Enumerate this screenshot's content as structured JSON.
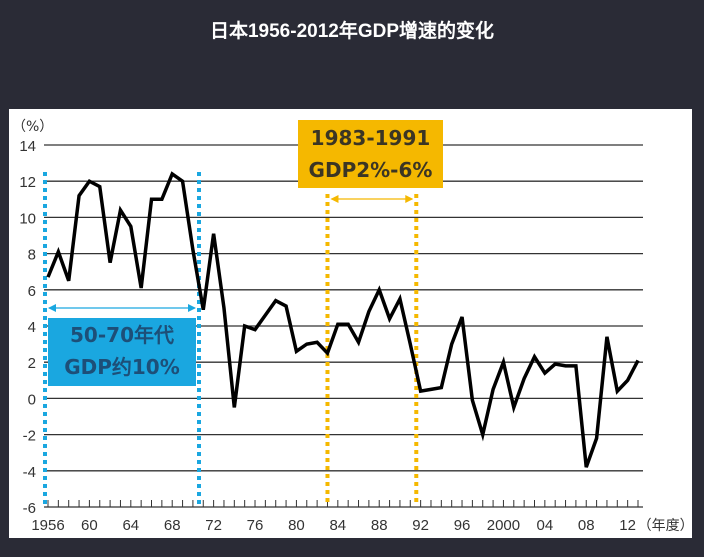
{
  "title": "日本1956-2012年GDP增速的变化",
  "chart_data": {
    "type": "line",
    "title": "日本1956-2012年GDP增速的变化",
    "ylabel": "（%）",
    "xlabel": "（年度）",
    "ylim": [
      -6,
      14
    ],
    "yticks": [
      14,
      12,
      10,
      8,
      6,
      4,
      2,
      0,
      -2,
      -4,
      -6
    ],
    "xlim": [
      1956,
      2013
    ],
    "xticks": [
      {
        "year": 1956,
        "label": "1956"
      },
      {
        "year": 1960,
        "label": "60"
      },
      {
        "year": 1964,
        "label": "64"
      },
      {
        "year": 1968,
        "label": "68"
      },
      {
        "year": 1972,
        "label": "72"
      },
      {
        "year": 1976,
        "label": "76"
      },
      {
        "year": 1980,
        "label": "80"
      },
      {
        "year": 1984,
        "label": "84"
      },
      {
        "year": 1988,
        "label": "88"
      },
      {
        "year": 1992,
        "label": "92"
      },
      {
        "year": 1996,
        "label": "96"
      },
      {
        "year": 2000,
        "label": "2000"
      },
      {
        "year": 2004,
        "label": "04"
      },
      {
        "year": 2008,
        "label": "08"
      },
      {
        "year": 2012,
        "label": "12"
      }
    ],
    "grid": true,
    "series": [
      {
        "color": "#000000",
        "x": [
          1956,
          1957,
          1958,
          1959,
          1960,
          1961,
          1962,
          1963,
          1964,
          1965,
          1966,
          1967,
          1968,
          1969,
          1970,
          1971,
          1972,
          1973,
          1974,
          1975,
          1976,
          1977,
          1978,
          1979,
          1980,
          1981,
          1982,
          1983,
          1984,
          1985,
          1986,
          1987,
          1988,
          1989,
          1990,
          1991,
          1992,
          1993,
          1994,
          1995,
          1996,
          1997,
          1998,
          1999,
          2000,
          2001,
          2002,
          2003,
          2004,
          2005,
          2006,
          2007,
          2008,
          2009,
          2010,
          2011,
          2012,
          2013
        ],
        "values": [
          6.7,
          8.1,
          6.5,
          11.2,
          12.0,
          11.7,
          7.5,
          10.4,
          9.5,
          6.1,
          11.0,
          11.0,
          12.4,
          12.0,
          8.2,
          4.9,
          9.1,
          5.0,
          -0.5,
          4.0,
          3.8,
          4.6,
          5.4,
          5.1,
          2.6,
          3.0,
          3.1,
          2.5,
          4.1,
          4.1,
          3.1,
          4.8,
          6.0,
          4.4,
          5.5,
          3.0,
          0.4,
          0.5,
          0.6,
          3.0,
          4.5,
          -0.1,
          -2.0,
          0.5,
          2.0,
          -0.5,
          1.1,
          2.3,
          1.4,
          1.9,
          1.8,
          1.8,
          -3.8,
          -2.2,
          3.4,
          0.4,
          1.0,
          2.1
        ]
      }
    ],
    "annotations": [
      {
        "label_line1": "50-70年代",
        "label_line2": "GDP约10%",
        "from": 1956,
        "to": 1971,
        "color": "#1aa7e0",
        "text_color": "#1d4f78"
      },
      {
        "label_line1": "1983-1991",
        "label_line2": "GDP2%-6%",
        "from": 1983,
        "to": 1991,
        "color": "#f5b800",
        "text_color": "#3b3524"
      }
    ]
  }
}
